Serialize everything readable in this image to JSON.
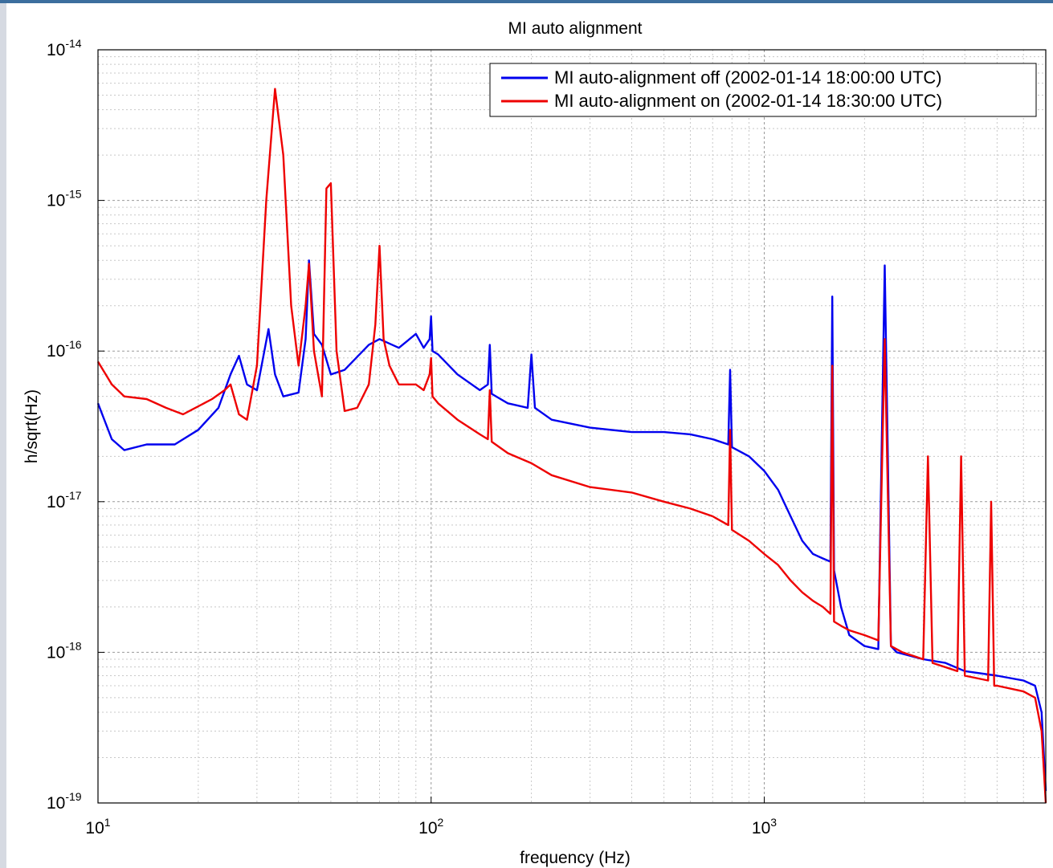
{
  "chart_data": {
    "type": "line",
    "title": "MI auto alignment",
    "xlabel": "frequency (Hz)",
    "ylabel": "h/sqrt(Hz)",
    "x_scale": "log",
    "y_scale": "log",
    "xlim": [
      10,
      7000
    ],
    "ylim": [
      1e-19,
      1e-14
    ],
    "grid": true,
    "legend_position": "top-right",
    "x_ticks": [
      {
        "value": 10,
        "base": "10",
        "exp": "1"
      },
      {
        "value": 100,
        "base": "10",
        "exp": "2"
      },
      {
        "value": 1000,
        "base": "10",
        "exp": "3"
      }
    ],
    "y_ticks": [
      {
        "value": 1e-14,
        "base": "10",
        "exp": "-14"
      },
      {
        "value": 1e-15,
        "base": "10",
        "exp": "-15"
      },
      {
        "value": 1e-16,
        "base": "10",
        "exp": "-16"
      },
      {
        "value": 1e-17,
        "base": "10",
        "exp": "-17"
      },
      {
        "value": 1e-18,
        "base": "10",
        "exp": "-18"
      },
      {
        "value": 1e-19,
        "base": "10",
        "exp": "-19"
      }
    ],
    "series": [
      {
        "name": "MI auto-alignment off (2002-01-14 18:00:00 UTC)",
        "color": "#0000ee",
        "x": [
          10,
          11,
          12,
          14,
          17,
          20,
          23,
          25,
          26.5,
          28,
          30,
          32.5,
          34,
          36,
          40,
          42,
          43,
          44.5,
          47,
          50,
          55,
          65,
          70,
          80,
          90,
          95,
          99,
          100,
          101,
          105,
          120,
          140,
          148,
          150,
          152,
          170,
          195,
          200,
          205,
          230,
          300,
          400,
          500,
          600,
          700,
          780,
          790,
          800,
          900,
          1000,
          1100,
          1200,
          1300,
          1400,
          1500,
          1580,
          1600,
          1620,
          1700,
          1800,
          2000,
          2200,
          2300,
          2400,
          2500,
          3000,
          3500,
          4000,
          5000,
          6000,
          6500,
          6800,
          7000
        ],
        "y": [
          4.5e-17,
          2.6e-17,
          2.2e-17,
          2.4e-17,
          2.4e-17,
          3e-17,
          4.2e-17,
          7e-17,
          9.3e-17,
          6e-17,
          5.5e-17,
          1.4e-16,
          7e-17,
          5e-17,
          5.3e-17,
          1.2e-16,
          4e-16,
          1.3e-16,
          1.1e-16,
          7e-17,
          7.5e-17,
          1.1e-16,
          1.2e-16,
          1.05e-16,
          1.3e-16,
          1.05e-16,
          1.2e-16,
          1.7e-16,
          1e-16,
          9.5e-17,
          7e-17,
          5.5e-17,
          6e-17,
          1.1e-16,
          5.2e-17,
          4.5e-17,
          4.2e-17,
          9.5e-17,
          4.2e-17,
          3.5e-17,
          3.1e-17,
          2.9e-17,
          2.9e-17,
          2.8e-17,
          2.6e-17,
          2.4e-17,
          7.5e-17,
          2.3e-17,
          2e-17,
          1.6e-17,
          1.2e-17,
          8e-18,
          5.5e-18,
          4.5e-18,
          4.2e-18,
          4e-18,
          2.3e-16,
          3.5e-18,
          2e-18,
          1.3e-18,
          1.1e-18,
          1.05e-18,
          3.7e-16,
          1.1e-18,
          1e-18,
          9e-19,
          8.5e-19,
          7.5e-19,
          7e-19,
          6.5e-19,
          6e-19,
          4e-19,
          1.2e-19
        ]
      },
      {
        "name": "MI auto-alignment on (2002-01-14 18:30:00 UTC)",
        "color": "#ee0000",
        "x": [
          10,
          11,
          12,
          14,
          16,
          18,
          20,
          22,
          24,
          25,
          26.5,
          28,
          30,
          32,
          34,
          36,
          38,
          40,
          42,
          43,
          44.5,
          47,
          48.5,
          50,
          52,
          55,
          60,
          65,
          68,
          70,
          72,
          75,
          80,
          90,
          95,
          99,
          100,
          101,
          105,
          120,
          140,
          148,
          150,
          152,
          170,
          200,
          230,
          300,
          400,
          500,
          600,
          700,
          780,
          790,
          800,
          900,
          1000,
          1100,
          1200,
          1300,
          1400,
          1500,
          1580,
          1600,
          1620,
          1700,
          1800,
          2000,
          2200,
          2300,
          2400,
          2600,
          3000,
          3100,
          3200,
          3800,
          3900,
          4000,
          4700,
          4800,
          4900,
          5000,
          6000,
          6500,
          6800,
          7000
        ],
        "y": [
          8.5e-17,
          6e-17,
          5e-17,
          4.8e-17,
          4.2e-17,
          3.8e-17,
          4.3e-17,
          4.8e-17,
          5.5e-17,
          6e-17,
          3.8e-17,
          3.5e-17,
          8e-17,
          1e-15,
          5.5e-15,
          2e-15,
          2e-16,
          8e-17,
          2e-16,
          3.8e-16,
          1e-16,
          5e-17,
          1.2e-15,
          1.3e-15,
          1e-16,
          4e-17,
          4.2e-17,
          6e-17,
          1.5e-16,
          5e-16,
          1.2e-16,
          8e-17,
          6e-17,
          6e-17,
          5.5e-17,
          7e-17,
          9e-17,
          5e-17,
          4.5e-17,
          3.5e-17,
          2.8e-17,
          2.6e-17,
          5.5e-17,
          2.5e-17,
          2.1e-17,
          1.8e-17,
          1.5e-17,
          1.25e-17,
          1.15e-17,
          1e-17,
          9e-18,
          8e-18,
          7e-18,
          3e-17,
          6.5e-18,
          5.5e-18,
          4.5e-18,
          3.8e-18,
          3e-18,
          2.5e-18,
          2.2e-18,
          2e-18,
          1.8e-18,
          8e-17,
          1.6e-18,
          1.5e-18,
          1.4e-18,
          1.3e-18,
          1.2e-18,
          1.2e-16,
          1.1e-18,
          1e-18,
          9e-19,
          2e-17,
          8.5e-19,
          7.5e-19,
          2e-17,
          7e-19,
          6.5e-19,
          1e-17,
          6e-19,
          6e-19,
          5.5e-19,
          5e-19,
          3e-19,
          1e-19
        ]
      }
    ]
  }
}
